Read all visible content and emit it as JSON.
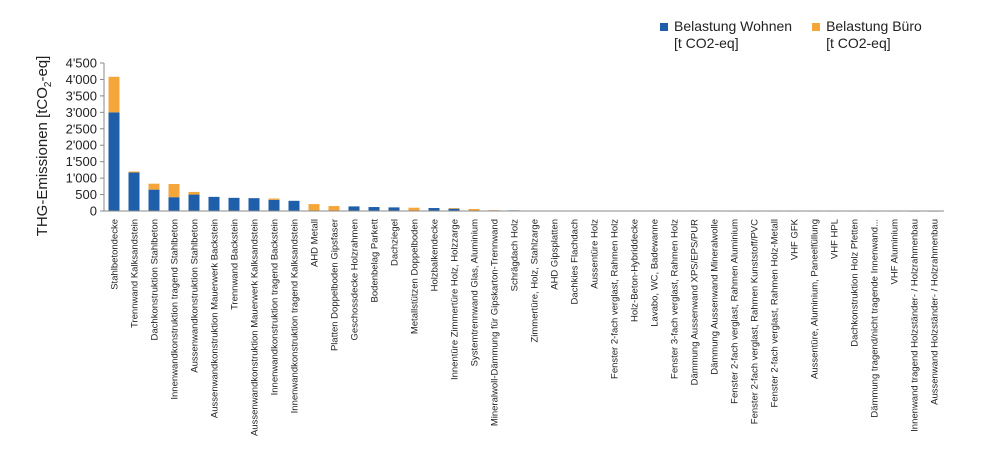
{
  "chart_data": {
    "type": "bar",
    "stacked": true,
    "ylabel_main": "THG-Emissionen [tCO",
    "ylabel_sub": "2",
    "ylabel_tail": "-eq]",
    "ylim": [
      0,
      4500
    ],
    "yticks": [
      0,
      500,
      1000,
      1500,
      2000,
      2500,
      3000,
      3500,
      4000,
      4500
    ],
    "ytick_labels": [
      "0",
      "500",
      "1'000",
      "1'500",
      "2'000",
      "2'500",
      "3'000",
      "3'500",
      "4'000",
      "4'500"
    ],
    "grid": false,
    "legend_position": "top-right",
    "categories": [
      "Stahlbetondecke",
      "Trennwand Kalksandstein",
      "Dachkonstruktion Stahlbeton",
      "Innenwandkonstruktion tragend Stahlbeton",
      "Aussenwandkonstruktion Stahlbeton",
      "Aussenwandkonstruktion Mauerwerk Backstein",
      "Trennwand Backstein",
      "Aussenwandkonstruktion Mauerwerk Kalksandstein",
      "Innenwandkonstruktion tragend Backstein",
      "Innenwandkonstruktion tragend Kalksandstein",
      "AHD Metall",
      "Platten Doppelboden Gipsfaser",
      "Geschossdecke Holzrahmen",
      "Bodenbelag Parkett",
      "Dachziegel",
      "Metallstützen Doppelboden",
      "Holzbalkendecke",
      "Innentüre Zimmertüre Holz, Holzzarge",
      "Systemtrennwand Glas, Aluminium",
      "Mineralwoll-Dämmung für Gipskarton-Trennwand",
      "Schrägdach Holz",
      "Zimmertüre, Holz, Stahlzarge",
      "AHD Gipsplatten",
      "Dachkies Flachdach",
      "Aussentüre Holz",
      "Fenster 2-fach verglast, Rahmen Holz",
      "Holz-Beton-Hybriddecke",
      "Lavabo, WC, Badewanne",
      "Fenster 3-fach verglast, Rahmen Holz",
      "Dämmung Aussenwand XPS/EPS/PUR",
      "Dämmung Aussenwand Mineralwolle",
      "Fenster 2-fach verglast, Rahmen Aluminium",
      "Fenster 2-fach verglast, Rahmen Kunststoff/PVC",
      "Fenster 2-fach verglast, Rahmen Holz-Metall",
      "VHF GFK",
      "Aussentüre, Aluminium, Paneelfüllung",
      "VHF HPL",
      "Dachkonstruktion Holz Pfetten",
      "Dämmung tragend/nicht tragende Innenwand...",
      "VHF Aluminium",
      "Innenwand tragend Holzständer- / Holzrahmenbau",
      "Aussenwand Holzständer- / Holzrahmenbau"
    ],
    "series": [
      {
        "name": "Belastung Wohnen\n[t CO2-eq]",
        "color": "#1f5ea8",
        "values": [
          3000,
          1170,
          650,
          420,
          500,
          430,
          400,
          390,
          340,
          310,
          0,
          0,
          140,
          120,
          110,
          0,
          90,
          70,
          10,
          0,
          20,
          10,
          5,
          5,
          4,
          4,
          3,
          3,
          3,
          3,
          3,
          2,
          2,
          2,
          2,
          2,
          2,
          2,
          2,
          2,
          1,
          1
        ]
      },
      {
        "name": "Belastung Büro\n[t CO2-eq]",
        "color": "#f4a63a",
        "values": [
          1080,
          30,
          180,
          400,
          80,
          0,
          0,
          0,
          40,
          0,
          210,
          150,
          0,
          0,
          0,
          100,
          0,
          20,
          50,
          25,
          0,
          0,
          5,
          0,
          0,
          0,
          0,
          0,
          0,
          0,
          0,
          0,
          0,
          0,
          0,
          0,
          0,
          0,
          5,
          0,
          0,
          0
        ]
      }
    ]
  }
}
